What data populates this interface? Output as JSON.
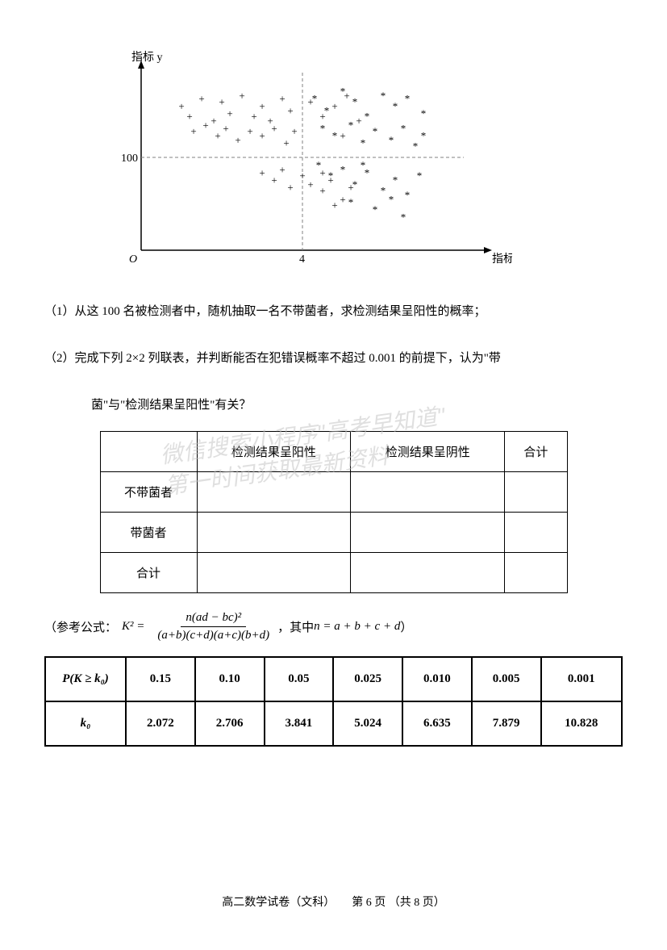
{
  "chart": {
    "y_label": "指标 y",
    "x_label": "指标 x",
    "y_tick": "100",
    "x_tick": "4",
    "origin": "O",
    "axis_color": "#000000",
    "grid_color": "#808080",
    "marker_plus_color": "#000000",
    "marker_star_color": "#000000",
    "plus_points": [
      [
        1.0,
        135
      ],
      [
        1.2,
        128
      ],
      [
        1.5,
        140
      ],
      [
        1.8,
        125
      ],
      [
        2.0,
        138
      ],
      [
        2.2,
        130
      ],
      [
        2.5,
        142
      ],
      [
        2.8,
        128
      ],
      [
        3.0,
        135
      ],
      [
        3.2,
        125
      ],
      [
        3.5,
        140
      ],
      [
        3.7,
        132
      ],
      [
        1.3,
        118
      ],
      [
        1.6,
        122
      ],
      [
        1.9,
        115
      ],
      [
        2.1,
        120
      ],
      [
        2.4,
        112
      ],
      [
        2.7,
        118
      ],
      [
        3.0,
        115
      ],
      [
        3.3,
        120
      ],
      [
        3.6,
        110
      ],
      [
        3.8,
        118
      ],
      [
        4.2,
        138
      ],
      [
        4.5,
        128
      ],
      [
        4.8,
        135
      ],
      [
        5.1,
        142
      ],
      [
        5.4,
        125
      ],
      [
        5.0,
        115
      ],
      [
        3.0,
        90
      ],
      [
        3.3,
        85
      ],
      [
        3.5,
        92
      ],
      [
        3.7,
        80
      ],
      [
        4.0,
        88
      ],
      [
        4.2,
        82
      ],
      [
        4.5,
        78
      ],
      [
        4.7,
        85
      ],
      [
        5.0,
        72
      ],
      [
        4.8,
        68
      ],
      [
        4.5,
        90
      ],
      [
        5.2,
        80
      ]
    ],
    "star_points": [
      [
        4.3,
        140
      ],
      [
        4.6,
        132
      ],
      [
        5.0,
        145
      ],
      [
        5.3,
        138
      ],
      [
        5.6,
        128
      ],
      [
        6.0,
        142
      ],
      [
        6.3,
        135
      ],
      [
        6.6,
        140
      ],
      [
        7.0,
        130
      ],
      [
        4.5,
        120
      ],
      [
        4.8,
        115
      ],
      [
        5.2,
        122
      ],
      [
        5.5,
        110
      ],
      [
        5.8,
        118
      ],
      [
        6.2,
        112
      ],
      [
        6.5,
        120
      ],
      [
        6.8,
        108
      ],
      [
        7.0,
        115
      ],
      [
        4.4,
        95
      ],
      [
        4.7,
        88
      ],
      [
        5.0,
        92
      ],
      [
        5.3,
        82
      ],
      [
        5.6,
        90
      ],
      [
        6.0,
        78
      ],
      [
        6.3,
        85
      ],
      [
        6.6,
        75
      ],
      [
        6.9,
        88
      ],
      [
        5.2,
        70
      ],
      [
        5.8,
        65
      ],
      [
        6.2,
        72
      ],
      [
        6.5,
        60
      ],
      [
        5.5,
        95
      ]
    ]
  },
  "questions": {
    "q1": "（1）从这 100 名被检测者中，随机抽取一名不带菌者，求检测结果呈阳性的概率；",
    "q2_part1": "（2）完成下列 2×2 列联表，并判断能否在犯错误概率不超过 0.001 的前提下，认为\"带",
    "q2_part2": "菌\"与\"检测结果呈阳性\"有关？"
  },
  "contingency": {
    "headers": [
      "",
      "检测结果呈阳性",
      "检测结果呈阴性",
      "合计"
    ],
    "rows": [
      "不带菌者",
      "带菌者",
      "合计"
    ]
  },
  "formula": {
    "prefix": "（参考公式：",
    "k_label": "K² =",
    "numerator": "n(ad − bc)²",
    "denominator": "(a+b)(c+d)(a+c)(b+d)",
    "suffix_prefix": "，其中 ",
    "n_formula": "n = a + b + c + d",
    "suffix_end": "）"
  },
  "ref_table": {
    "p_header": "P(K ≥ k₀)",
    "k_header": "k₀",
    "p_values": [
      "0.15",
      "0.10",
      "0.05",
      "0.025",
      "0.010",
      "0.005",
      "0.001"
    ],
    "k_values": [
      "2.072",
      "2.706",
      "3.841",
      "5.024",
      "6.635",
      "7.879",
      "10.828"
    ]
  },
  "footer": {
    "text": "高二数学试卷（文科）　　第 6 页 （共 8 页）"
  },
  "watermark": {
    "line1": "微信搜索小程序\"高考早知道\"",
    "line2": "第一时间获取最新资料"
  }
}
